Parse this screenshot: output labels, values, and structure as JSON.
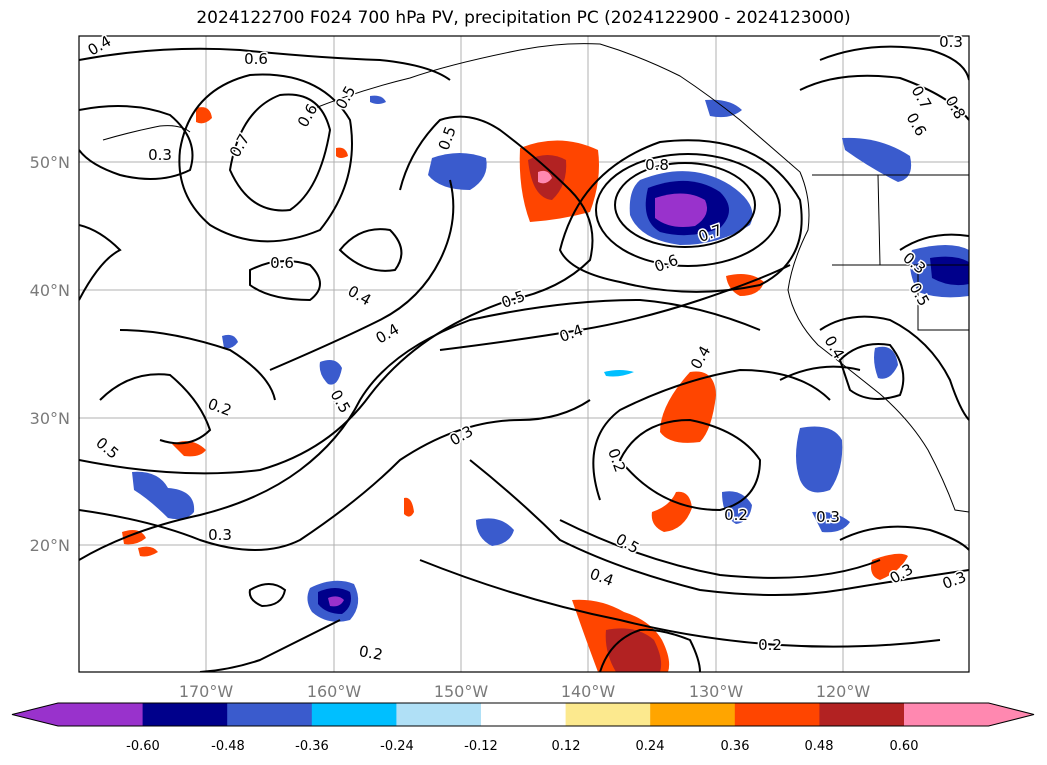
{
  "title": "2024122700 F024 700 hPa PV, precipitation PC (2024122900 - 2024123000)",
  "map": {
    "lon_ticks": [
      "170°W",
      "160°W",
      "150°W",
      "140°W",
      "130°W",
      "120°W"
    ],
    "lat_ticks": [
      "50°N",
      "40°N",
      "30°N",
      "20°N"
    ],
    "contour_labels": [
      "0.4",
      "0.6",
      "0.3",
      "0.7",
      "0.6",
      "0.5",
      "0.5",
      "0.8",
      "0.7",
      "0.6",
      "0.5",
      "0.4",
      "0.4",
      "0.4",
      "0.2",
      "0.5",
      "0.3",
      "0.5",
      "0.2",
      "0.3",
      "0.4",
      "0.5",
      "0.4",
      "0.2",
      "0.3",
      "0.3",
      "0.3",
      "0.2",
      "0.2",
      "0.6",
      "0.7",
      "0.8",
      "0.6",
      "0.3",
      "0.5",
      "0.4",
      "0.3"
    ]
  },
  "colorbar": {
    "labels": [
      "-0.60",
      "-0.48",
      "-0.36",
      "-0.24",
      "-0.12",
      "0.12",
      "0.24",
      "0.36",
      "0.48",
      "0.60"
    ],
    "colors": [
      "#9932cc",
      "#00008b",
      "#3a5bcd",
      "#00bfff",
      "#b0e0f6",
      "#ffffff",
      "#fce98e",
      "#ffa500",
      "#ff4500",
      "#b22222",
      "#ff88b0"
    ]
  }
}
